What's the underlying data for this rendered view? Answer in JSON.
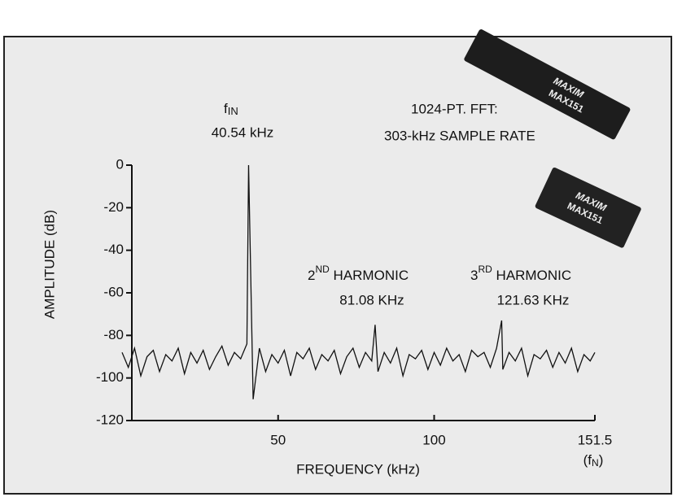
{
  "chart_data": {
    "type": "line",
    "ylabel": "AMPLITUDE (dB)",
    "xlabel": "FREQUENCY (kHz)",
    "xlim": [
      0,
      151.5
    ],
    "ylim": [
      -120,
      0
    ],
    "xticks": [
      50,
      100,
      151.5
    ],
    "yticks": [
      0,
      -20,
      -40,
      -60,
      -80,
      -100,
      -120
    ],
    "x_end_note": [
      "(f",
      "N",
      ")"
    ],
    "color": "#111111",
    "annotations": {
      "fundamental": {
        "f": "f",
        "sub": "IN",
        "freq": "40.54 kHz"
      },
      "fft": [
        "1024-PT. FFT:",
        "303-kHz SAMPLE RATE"
      ],
      "second": {
        "n": "2",
        "sup": "ND",
        "text": " HARMONIC",
        "freq": "81.08 KHz"
      },
      "third": {
        "n": "3",
        "sup": "RD",
        "text": " HARMONIC",
        "freq": "121.63 KHz"
      }
    },
    "chips": [
      {
        "brand": "MAXIM",
        "part": "MAX151"
      },
      {
        "brand": "MAXIM",
        "part": "MAX151"
      }
    ],
    "x": [
      0,
      2,
      4,
      6,
      8,
      10,
      12,
      14,
      16,
      18,
      20,
      22,
      24,
      26,
      28,
      30,
      32,
      34,
      36,
      38,
      40,
      40.54,
      42,
      44,
      46,
      48,
      50,
      52,
      54,
      56,
      58,
      60,
      62,
      64,
      66,
      68,
      70,
      72,
      74,
      76,
      78,
      80,
      81.08,
      82,
      84,
      86,
      88,
      90,
      92,
      94,
      96,
      98,
      100,
      102,
      104,
      106,
      108,
      110,
      112,
      114,
      116,
      118,
      120,
      121.63,
      122,
      124,
      126,
      128,
      130,
      132,
      134,
      136,
      138,
      140,
      142,
      144,
      146,
      148,
      150,
      151.5
    ],
    "values": [
      -88,
      -95,
      -86,
      -99,
      -90,
      -87,
      -97,
      -89,
      -92,
      -86,
      -98,
      -88,
      -93,
      -87,
      -96,
      -90,
      -85,
      -94,
      -88,
      -91,
      -84,
      0,
      -110,
      -86,
      -97,
      -89,
      -93,
      -87,
      -99,
      -88,
      -91,
      -86,
      -96,
      -89,
      -92,
      -87,
      -98,
      -90,
      -86,
      -95,
      -88,
      -92,
      -75,
      -97,
      -88,
      -93,
      -86,
      -99,
      -89,
      -91,
      -87,
      -96,
      -88,
      -94,
      -86,
      -92,
      -89,
      -97,
      -87,
      -90,
      -88,
      -95,
      -86,
      -73,
      -96,
      -88,
      -92,
      -86,
      -99,
      -89,
      -91,
      -87,
      -95,
      -88,
      -93,
      -86,
      -97,
      -89,
      -92,
      -88
    ]
  }
}
